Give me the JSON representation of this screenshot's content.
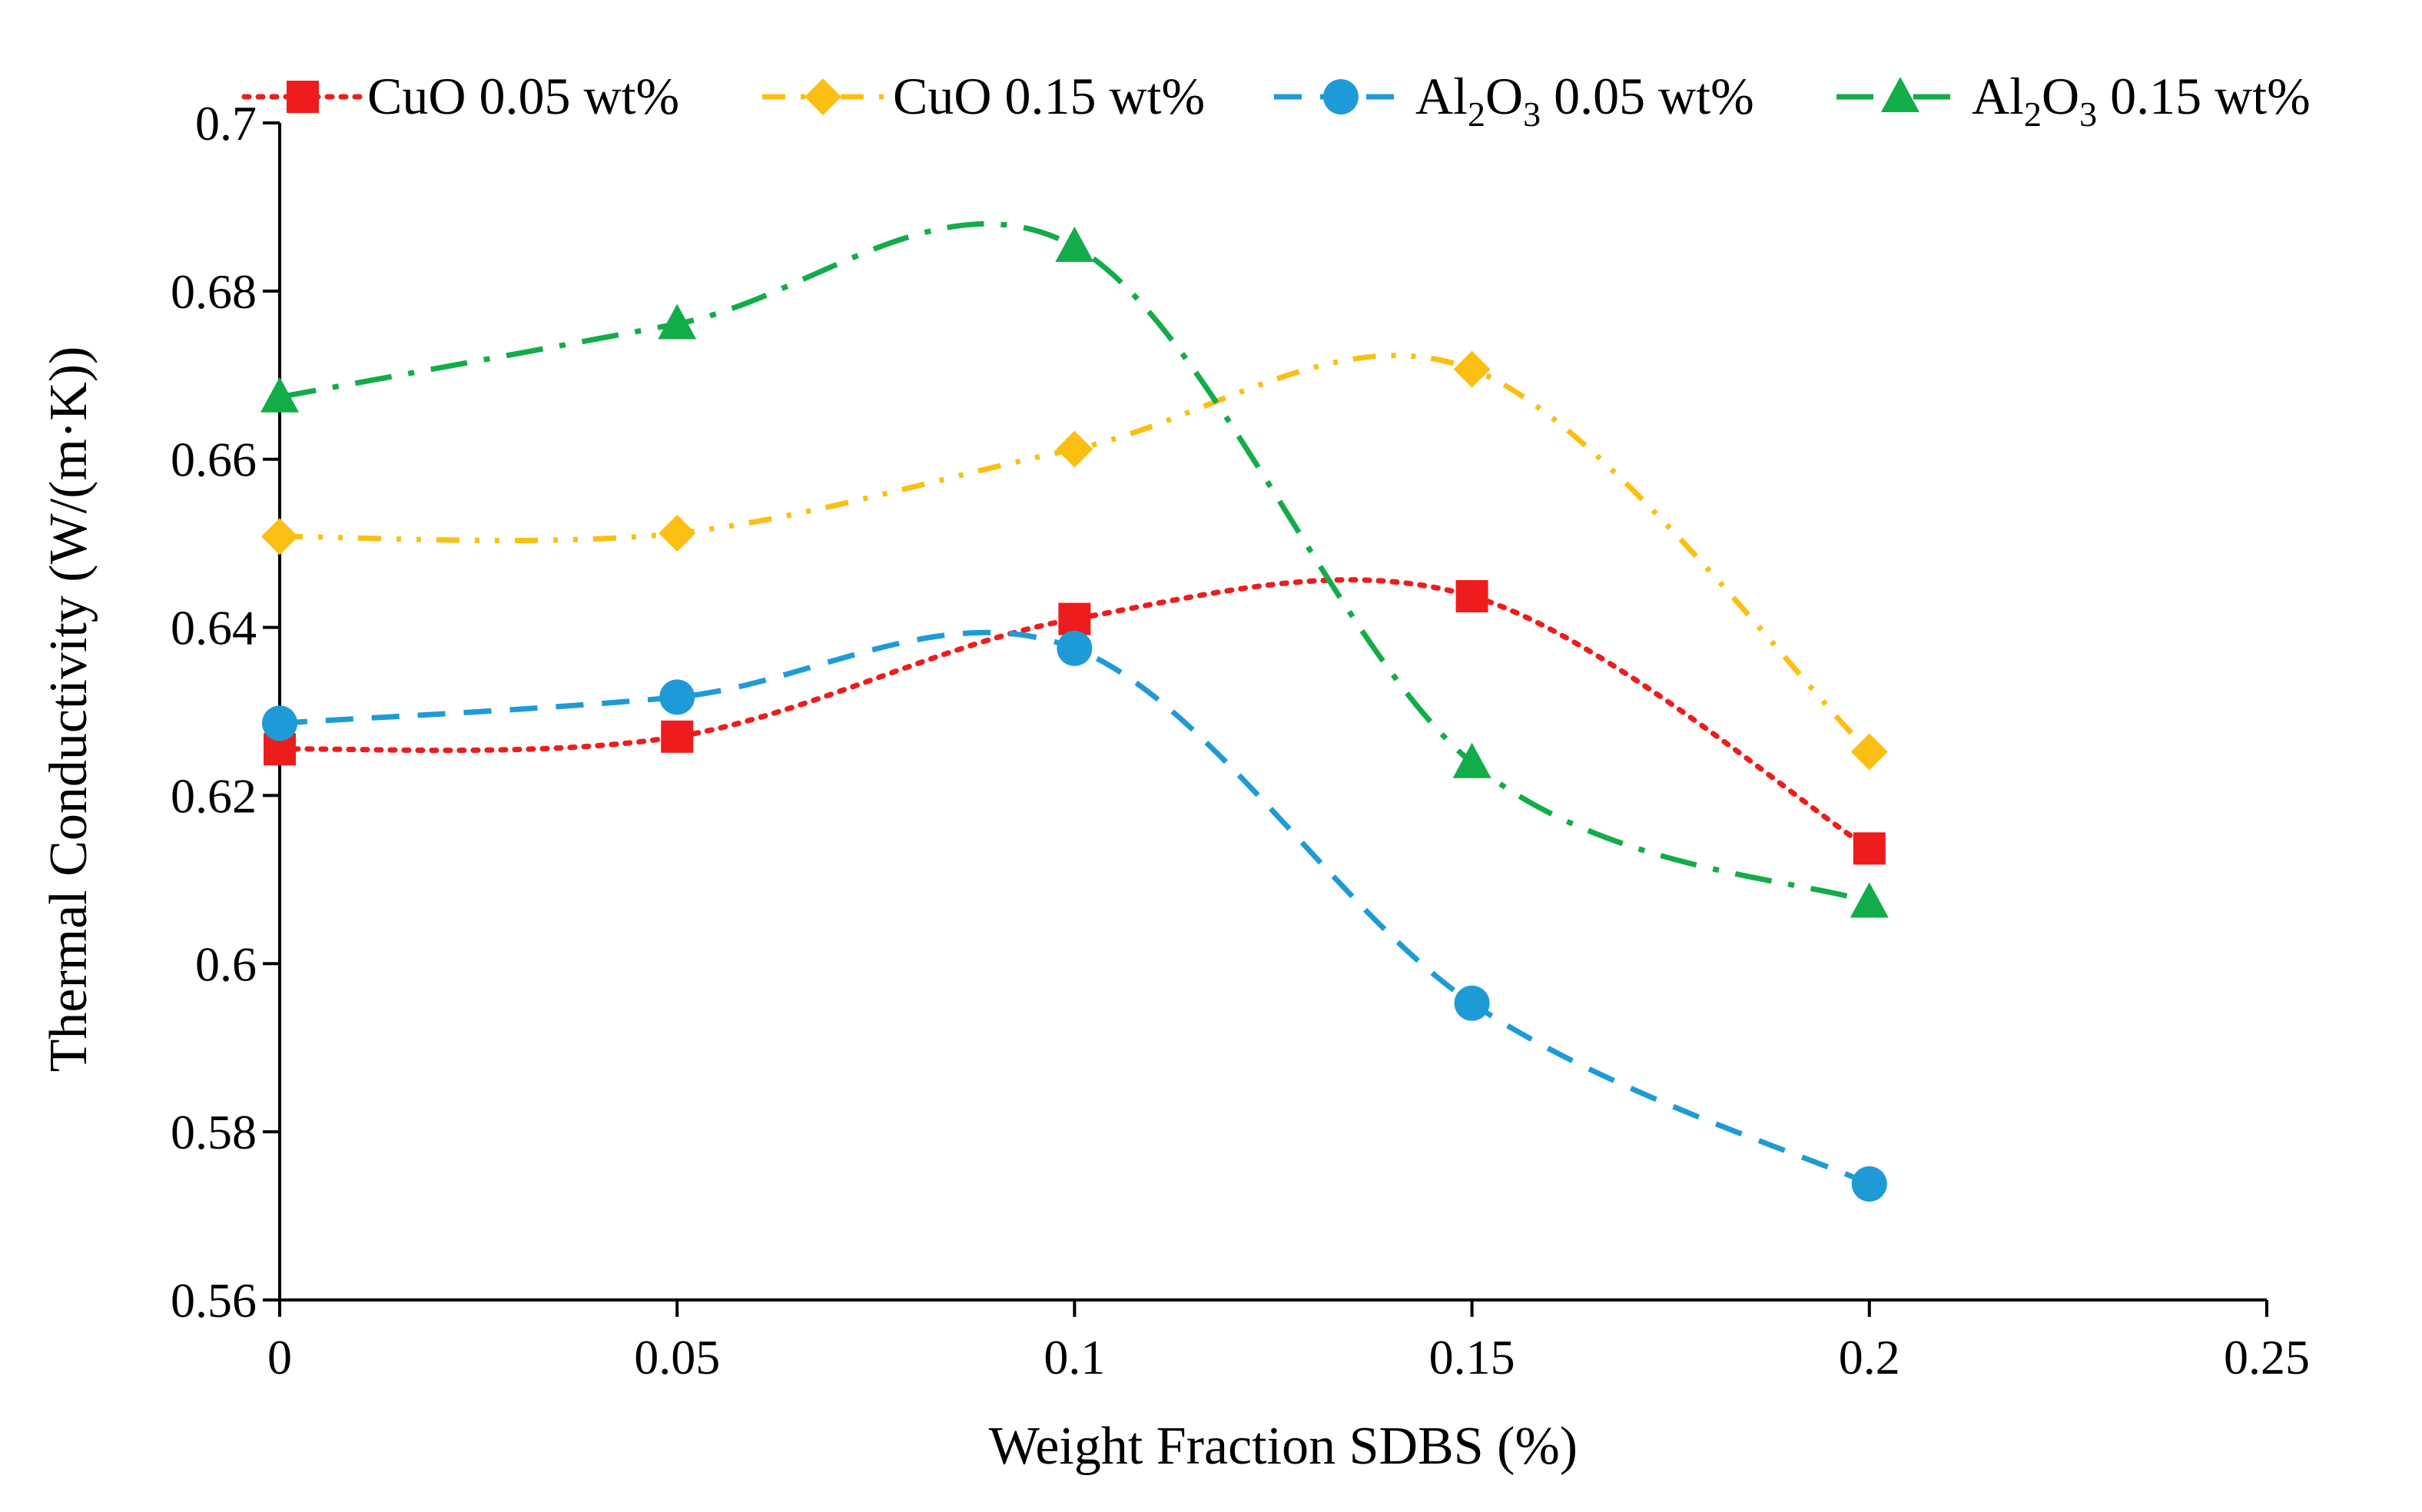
{
  "chart_data": {
    "type": "line",
    "title": "",
    "xlabel": "Weight Fraction SDBS (%)",
    "ylabel": "Thermal Conductivity (W/(m·K))",
    "xlim": [
      0,
      0.25
    ],
    "ylim": [
      0.56,
      0.7
    ],
    "x_ticks": [
      "0",
      "0.05",
      "0.1",
      "0.15",
      "0.2",
      "0.25"
    ],
    "y_ticks": [
      "0.56",
      "0.58",
      "0.6",
      "0.62",
      "0.64",
      "0.66",
      "0.68",
      "0.7"
    ],
    "x": [
      0,
      0.05,
      0.1,
      0.15,
      0.2
    ],
    "grid": false,
    "legend_position": "top",
    "series": [
      {
        "name": "CuO 0.05 wt%",
        "label_parts": {
          "pre": "CuO 0.05 wt%"
        },
        "values": [
          0.6255,
          0.627,
          0.641,
          0.6437,
          0.6137
        ],
        "color": "#ee1c1c",
        "marker": "square",
        "line_style": "dotted"
      },
      {
        "name": "CuO 0.15 wt%",
        "label_parts": {
          "pre": "CuO 0.15 wt%"
        },
        "values": [
          0.6508,
          0.6512,
          0.6612,
          0.6707,
          0.6252
        ],
        "color": "#fbbf14",
        "marker": "diamond",
        "line_style": "dash-dot-dot"
      },
      {
        "name": "Al2O3 0.05 wt%",
        "label_parts": {
          "a": "Al",
          "s1": "2",
          "b": "O",
          "s2": "3",
          "c": " 0.05 wt%"
        },
        "values": [
          0.6286,
          0.6317,
          0.6375,
          0.5953,
          0.5738
        ],
        "color": "#1e9bd7",
        "marker": "circle",
        "line_style": "dashed"
      },
      {
        "name": "Al2O3 0.15 wt%",
        "label_parts": {
          "a": "Al",
          "s1": "2",
          "b": "O",
          "s2": "3",
          "c": " 0.15 wt%"
        },
        "values": [
          0.6674,
          0.6761,
          0.6853,
          0.6239,
          0.6073
        ],
        "color": "#12ac48",
        "marker": "triangle",
        "line_style": "dash-dot"
      }
    ]
  }
}
